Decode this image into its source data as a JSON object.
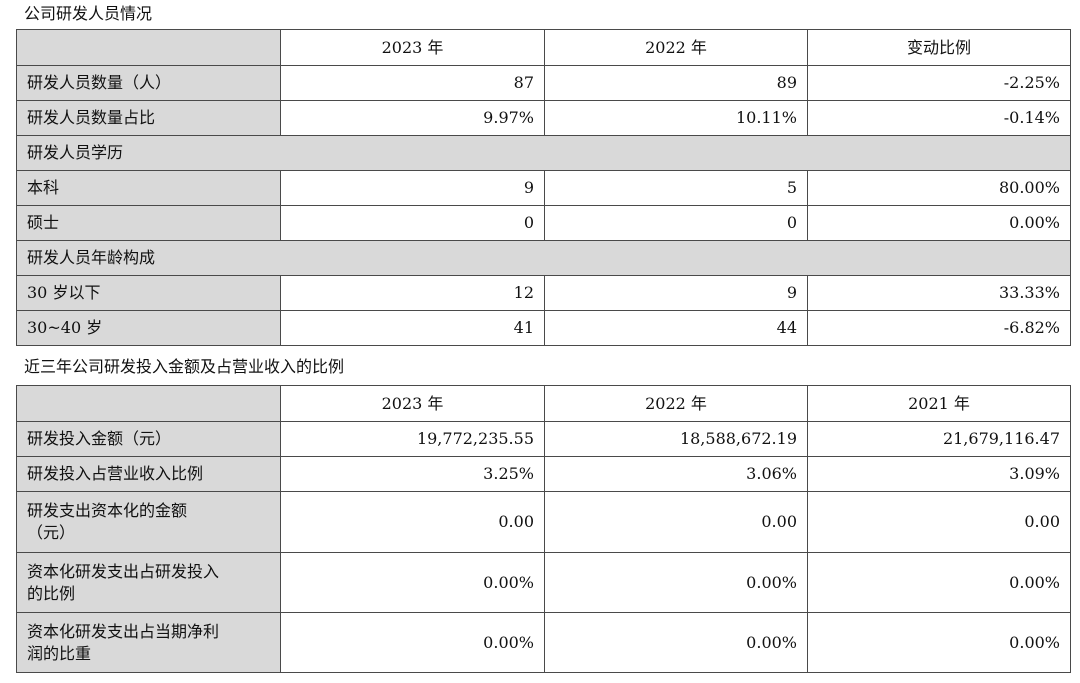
{
  "table1": {
    "caption": "公司研发人员情况",
    "headers": [
      "2023 年",
      "2022 年",
      "变动比例"
    ],
    "rows": [
      {
        "label": "研发人员数量（人）",
        "values": [
          "87",
          "89",
          "-2.25%"
        ]
      },
      {
        "label": "研发人员数量占比",
        "values": [
          "9.97%",
          "10.11%",
          "-0.14%"
        ]
      },
      {
        "section": "研发人员学历"
      },
      {
        "label": "本科",
        "values": [
          "9",
          "5",
          "80.00%"
        ]
      },
      {
        "label": "硕士",
        "values": [
          "0",
          "0",
          "0.00%"
        ]
      },
      {
        "section": "研发人员年龄构成"
      },
      {
        "label": "30 岁以下",
        "values": [
          "12",
          "9",
          "33.33%"
        ]
      },
      {
        "label": "30~40 岁",
        "values": [
          "41",
          "44",
          "-6.82%"
        ]
      }
    ]
  },
  "table2": {
    "caption": "近三年公司研发投入金额及占营业收入的比例",
    "headers": [
      "2023 年",
      "2022 年",
      "2021 年"
    ],
    "rows": [
      {
        "label": "研发投入金额（元）",
        "values": [
          "19,772,235.55",
          "18,588,672.19",
          "21,679,116.47"
        ]
      },
      {
        "label": "研发投入占营业收入比例",
        "values": [
          "3.25%",
          "3.06%",
          "3.09%"
        ]
      },
      {
        "label_lines": [
          "研发支出资本化的金额",
          "（元）"
        ],
        "values": [
          "0.00",
          "0.00",
          "0.00"
        ]
      },
      {
        "label_lines": [
          "资本化研发支出占研发投入",
          "的比例"
        ],
        "values": [
          "0.00%",
          "0.00%",
          "0.00%"
        ]
      },
      {
        "label_lines": [
          "资本化研发支出占当期净利",
          "润的比重"
        ],
        "values": [
          "0.00%",
          "0.00%",
          "0.00%"
        ]
      }
    ]
  }
}
